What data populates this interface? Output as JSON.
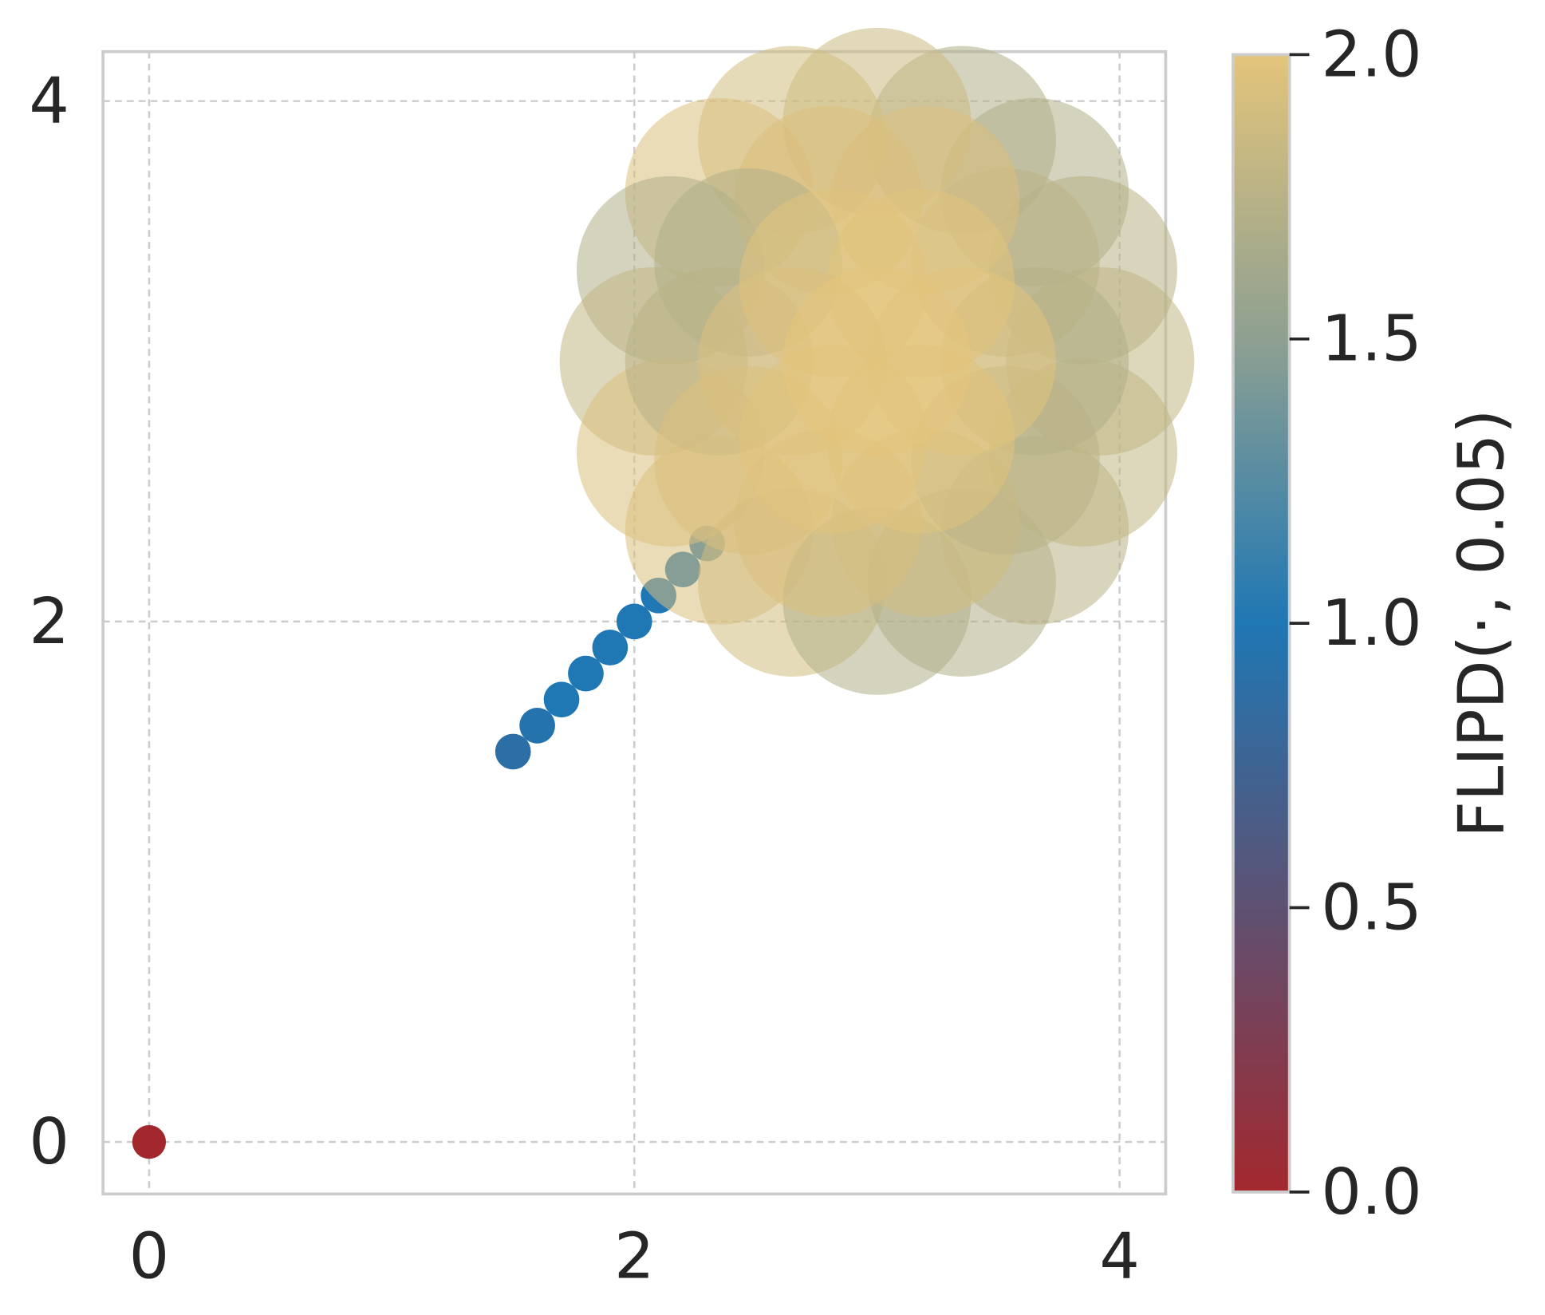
{
  "chart_data": {
    "type": "scatter",
    "x": [
      0,
      1.5,
      1.6,
      1.7,
      1.8,
      1.9,
      2.0,
      2.1,
      2.2,
      2.3,
      3.92,
      3.85,
      3.65,
      3.35,
      3,
      2.65,
      2.35,
      2.15,
      2.08,
      2.15,
      2.35,
      2.65,
      3,
      3.35,
      3.65,
      3.85,
      3.65,
      3.53,
      3.2,
      2.8,
      2.47,
      2.35,
      2.47,
      2.8,
      3.2,
      3.53,
      3.35,
      3.18,
      2.82,
      2.65,
      2.82,
      3.18,
      3
    ],
    "y": [
      0,
      1.5,
      1.6,
      1.7,
      1.8,
      1.9,
      2.0,
      2.1,
      2.2,
      2.3,
      3,
      3.35,
      3.65,
      3.85,
      3.92,
      3.85,
      3.65,
      3.35,
      3,
      2.65,
      2.35,
      2.15,
      2.08,
      2.15,
      2.35,
      2.65,
      3,
      3.38,
      3.62,
      3.62,
      3.38,
      3,
      2.62,
      2.38,
      2.38,
      2.62,
      3,
      3.3,
      3.3,
      3,
      2.7,
      2.7,
      3
    ],
    "values": [
      0,
      0.9,
      0.95,
      1.0,
      1.0,
      1.0,
      1.0,
      1.0,
      1.0,
      1.05,
      1.8,
      1.75,
      1.7,
      1.7,
      1.85,
      1.9,
      1.95,
      1.7,
      1.8,
      1.95,
      1.95,
      1.9,
      1.7,
      1.7,
      1.75,
      1.8,
      1.7,
      1.75,
      1.95,
      1.95,
      1.7,
      1.75,
      1.95,
      1.95,
      1.9,
      1.75,
      1.98,
      1.98,
      1.98,
      1.95,
      1.98,
      1.98,
      2.0
    ],
    "colormap": [
      "#a3282e",
      "#5e5172",
      "#1f77b4",
      "#8ea091",
      "#e3c47b"
    ],
    "clim": [
      0,
      2
    ],
    "xlim": [
      -0.19,
      4.19
    ],
    "ylim": [
      -0.2,
      4.19
    ],
    "xticks": [
      0,
      2,
      4
    ],
    "yticks": [
      0,
      2,
      4
    ],
    "grid": true,
    "colorbar_label": "FLIPD(·, 0.05)",
    "colorbar_ticks": [
      {
        "value": 0,
        "label": "0.0"
      },
      {
        "value": 0.5,
        "label": "0.5"
      },
      {
        "value": 1,
        "label": "1.0"
      },
      {
        "value": 1.5,
        "label": "1.5"
      },
      {
        "value": 2,
        "label": "2.0"
      }
    ]
  }
}
